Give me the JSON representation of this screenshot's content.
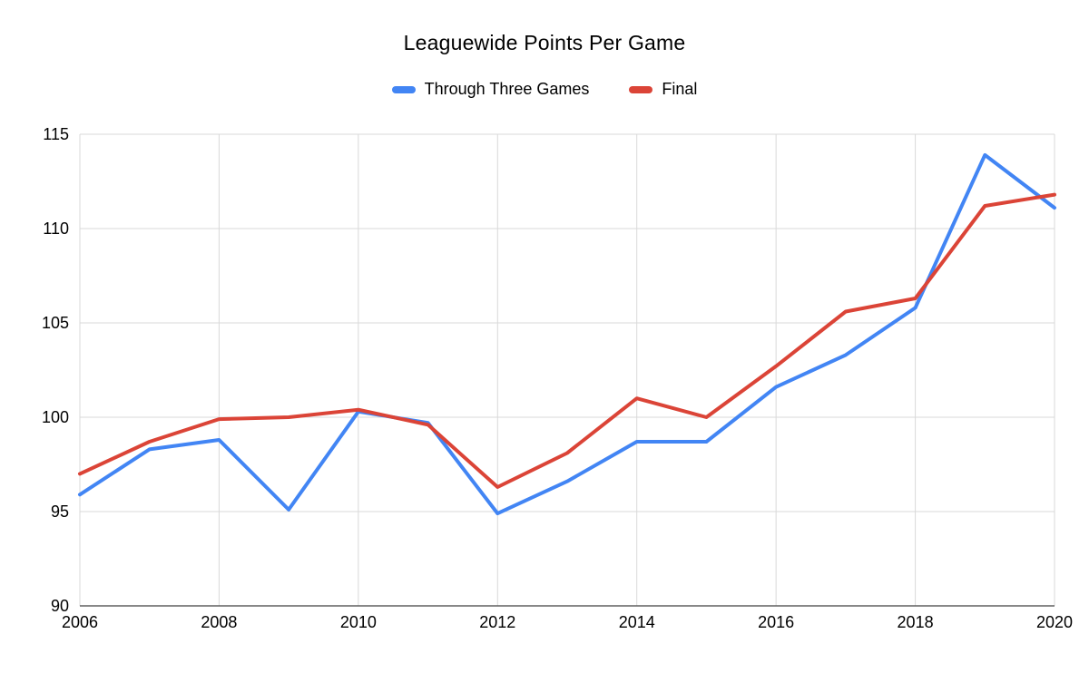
{
  "chart_data": {
    "type": "line",
    "title": "Leaguewide Points Per Game",
    "x": [
      2006,
      2007,
      2008,
      2009,
      2010,
      2011,
      2012,
      2013,
      2014,
      2015,
      2016,
      2017,
      2018,
      2019,
      2020
    ],
    "series": [
      {
        "name": "Through Three Games",
        "color": "#4285f4",
        "values": [
          95.9,
          98.3,
          98.8,
          95.1,
          100.3,
          99.7,
          94.9,
          96.6,
          98.7,
          98.7,
          101.6,
          103.3,
          105.8,
          113.9,
          111.1
        ]
      },
      {
        "name": "Final",
        "color": "#db4437",
        "values": [
          97.0,
          98.7,
          99.9,
          100.0,
          100.4,
          99.6,
          96.3,
          98.1,
          101.0,
          100.0,
          102.7,
          105.6,
          106.3,
          111.2,
          111.8
        ]
      }
    ],
    "ylim": [
      90,
      115
    ],
    "yticks": [
      90,
      95,
      100,
      105,
      110,
      115
    ],
    "xticks": [
      2006,
      2008,
      2010,
      2012,
      2014,
      2016,
      2018,
      2020
    ],
    "grid": true,
    "legend_position": "top"
  }
}
